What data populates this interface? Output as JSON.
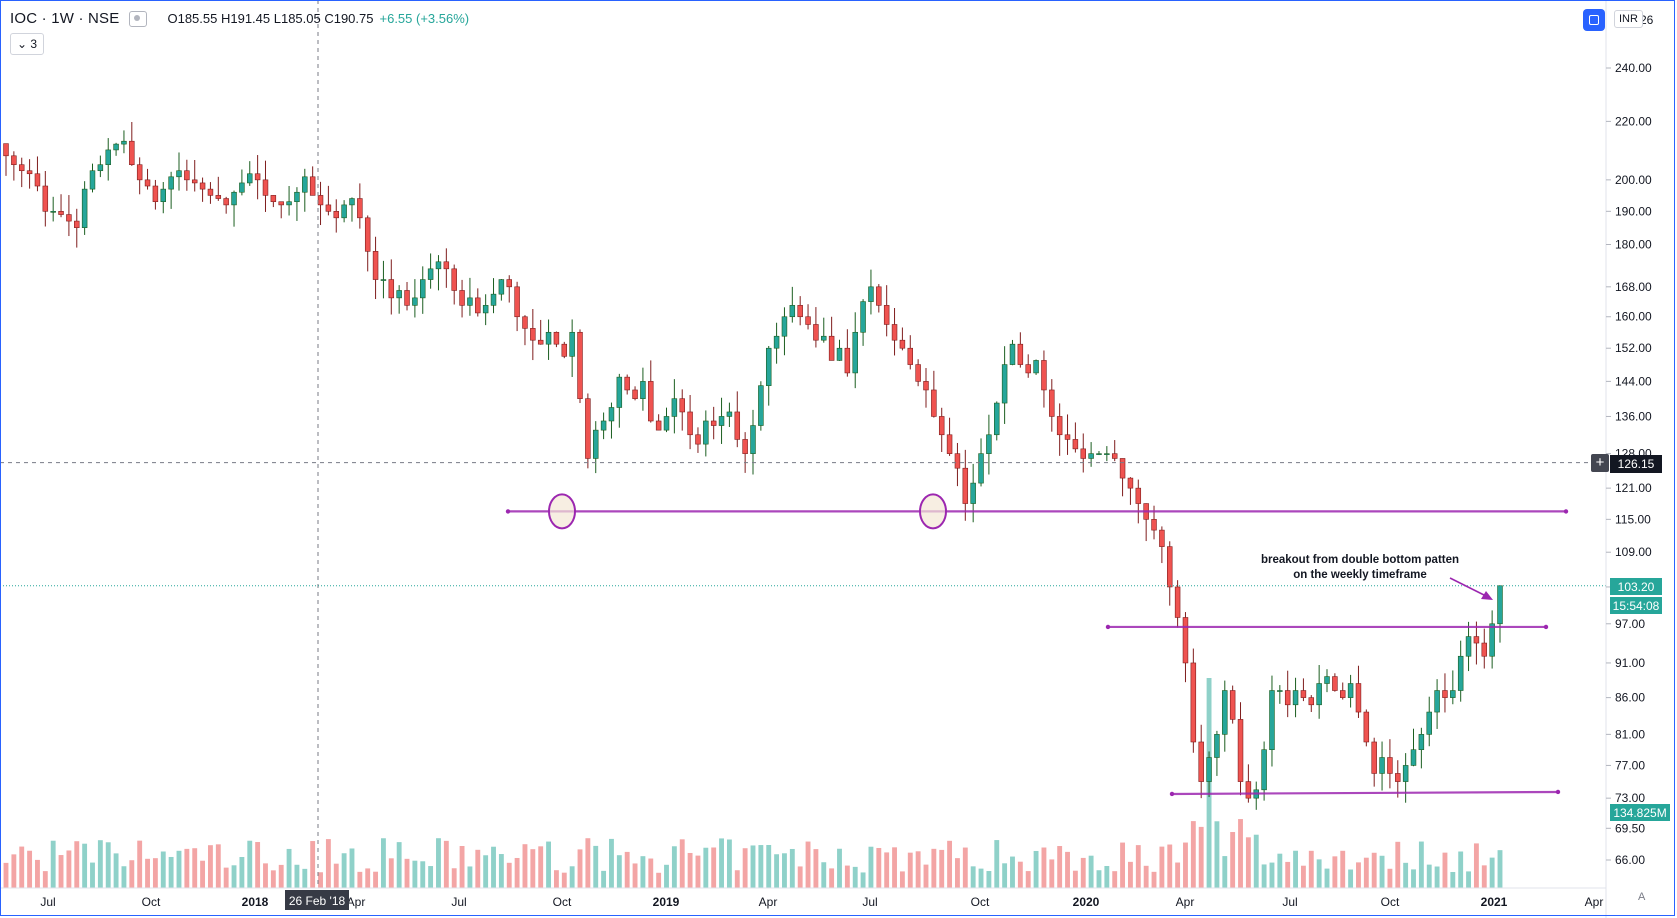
{
  "legend": {
    "symbol": "IOC · 1W · NSE",
    "ohlc": "O185.55 H191.45 L185.05 C190.75",
    "change": "+6.55 (+3.56%)",
    "collapse_label": "⌄ 3",
    "currency": "INR",
    "top_tick_partial": "26"
  },
  "crosshair": {
    "x_label": "26 Feb '18"
  },
  "annotation": {
    "line1": "breakout from double bottom patten",
    "line2": "on the weekly timeframe"
  },
  "price_labels": {
    "crosshair_price": "126.15",
    "last_price": "103.20",
    "countdown": "15:54:08",
    "volume": "134.825M",
    "scale_mode": "A"
  },
  "colors": {
    "up": "#26a69a",
    "down": "#ef5350",
    "up_border": "#1b5e20",
    "down_border": "#7f1d1d",
    "vol_up": "#8fd1c9",
    "vol_down": "#f3a5a5",
    "level_line": "#9c27b0",
    "label_blue": "#2962ff",
    "label_teal": "#26a69a"
  },
  "chart_data": {
    "type": "candlestick",
    "xlabels": [
      "Jul",
      "Oct",
      "2018",
      "Apr",
      "Jul",
      "Oct",
      "2019",
      "Apr",
      "Jul",
      "Oct",
      "2020",
      "Apr",
      "Jul",
      "Oct",
      "2021",
      "Apr"
    ],
    "ylabels": [
      "240.00",
      "220.00",
      "200.00",
      "190.00",
      "180.00",
      "168.00",
      "160.00",
      "152.00",
      "144.00",
      "136.00",
      "128.00",
      "121.00",
      "115.00",
      "109.00",
      "103.00",
      "97.00",
      "91.00",
      "86.00",
      "81.00",
      "77.00",
      "73.00",
      "69.50",
      "66.00"
    ],
    "log_scale": true,
    "levels": [
      116.5,
      96.5,
      73.5
    ],
    "close": [
      208,
      205,
      203,
      202,
      198,
      190,
      190,
      189,
      187,
      185,
      197,
      203,
      205,
      210,
      212,
      213,
      205,
      200,
      198,
      193,
      197,
      201,
      203,
      200,
      199,
      197,
      195,
      194,
      192,
      196,
      199,
      202,
      200,
      195,
      193,
      192,
      193,
      196,
      201,
      195,
      192,
      190,
      188,
      192,
      194,
      188,
      178,
      170,
      170,
      165,
      167,
      163,
      165,
      170,
      173,
      175,
      173,
      167,
      163,
      165,
      161,
      163,
      166,
      170,
      168,
      160,
      157,
      154,
      153,
      156,
      153,
      150,
      156,
      140,
      127,
      133,
      135,
      138,
      145,
      142,
      140,
      144,
      135,
      133,
      136,
      140,
      137,
      132,
      130,
      135,
      134,
      136,
      137,
      131,
      128,
      134,
      143,
      152,
      155,
      160,
      163,
      160,
      158,
      154,
      155,
      149,
      152,
      146,
      156,
      164,
      168,
      163,
      158,
      154,
      152,
      148,
      144,
      142,
      136,
      132,
      128,
      125,
      118,
      122,
      128,
      132,
      139,
      148,
      153,
      148,
      146,
      149,
      142,
      136,
      132,
      131,
      129,
      127,
      128,
      128,
      128,
      127,
      123,
      121,
      118,
      115,
      113,
      110,
      103,
      98,
      91,
      80,
      75,
      78,
      81,
      87,
      83,
      75,
      73,
      74,
      79,
      87,
      87,
      85,
      87,
      86,
      85,
      88,
      89,
      87,
      86,
      88,
      84,
      80,
      76,
      78,
      76,
      75,
      77,
      79,
      81,
      84,
      87,
      86,
      87,
      92,
      95,
      94,
      92,
      97,
      103.2
    ],
    "volume_notes": "weekly volume histogram; spike near Mar 2020"
  }
}
